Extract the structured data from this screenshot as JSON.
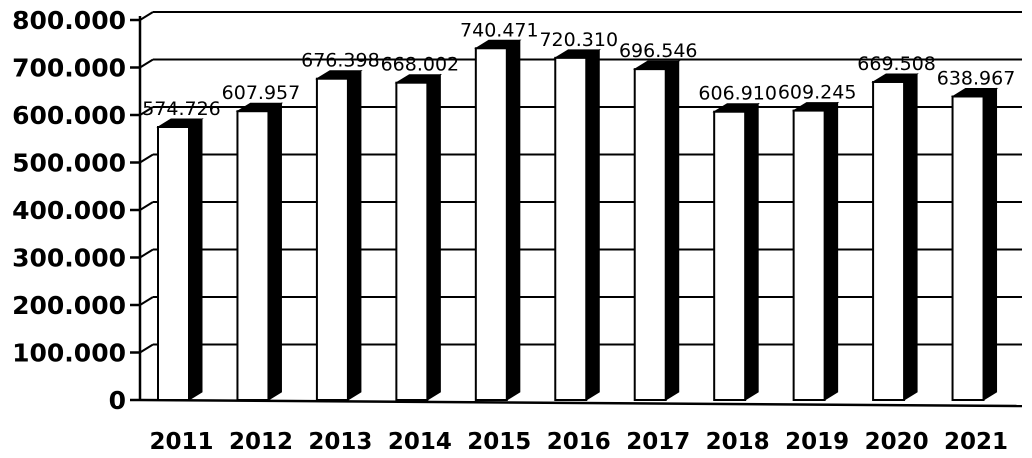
{
  "chart_data": {
    "type": "bar",
    "title": "",
    "xlabel": "",
    "ylabel": "",
    "categories": [
      "2011",
      "2012",
      "2013",
      "2014",
      "2015",
      "2016",
      "2017",
      "2018",
      "2019",
      "2020",
      "2021"
    ],
    "values": [
      574726,
      607957,
      676398,
      668002,
      740471,
      720310,
      696546,
      606910,
      609245,
      669508,
      638967
    ],
    "data_labels": [
      "574.726",
      "607.957",
      "676.398",
      "668.002",
      "740.471",
      "720.310",
      "696.546",
      "606.910",
      "609.245",
      "669.508",
      "638.967"
    ],
    "yticks": [
      0,
      100000,
      200000,
      300000,
      400000,
      500000,
      600000,
      700000,
      800000
    ],
    "ytick_labels": [
      "0",
      "100.000",
      "200.000",
      "300.000",
      "400.000",
      "500.000",
      "600.000",
      "700.000",
      "800.000"
    ],
    "ylim": [
      0,
      800000
    ],
    "grid": true,
    "legend": "none",
    "style": "3d",
    "colors": {
      "bar_face": "#ffffff",
      "bar_side": "#000000",
      "grid": "#000000",
      "text": "#000000"
    }
  }
}
